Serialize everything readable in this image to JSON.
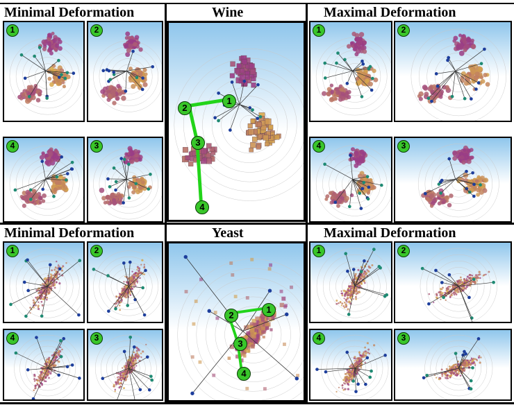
{
  "titles": {
    "wine_min": "Minimal Deformation",
    "wine_center": "Wine",
    "wine_max": "Maximal Deformation",
    "yeast_min": "Minimal Deformation",
    "yeast_center": "Yeast",
    "yeast_max": "Maximal Deformation"
  },
  "badges": {
    "wine_min": [
      "1",
      "2",
      "4",
      "3"
    ],
    "wine_max": [
      "1",
      "2",
      "4",
      "3"
    ],
    "yeast_min": [
      "1",
      "2",
      "4",
      "3"
    ],
    "yeast_max": [
      "1",
      "2",
      "4",
      "3"
    ]
  },
  "path_markers": {
    "wine": [
      "1",
      "2",
      "3",
      "4"
    ],
    "yeast": [
      "1",
      "2",
      "3",
      "4"
    ]
  },
  "colors": {
    "badge_green": "#39c62a",
    "path_green": "#22d41a",
    "sky_blue": "#8fc6ec",
    "wine_purple": "#9a3d86",
    "wine_gold": "#d8a94a",
    "anchor_blue": "#1d3e9c",
    "anchor_teal": "#1f8a73"
  }
}
